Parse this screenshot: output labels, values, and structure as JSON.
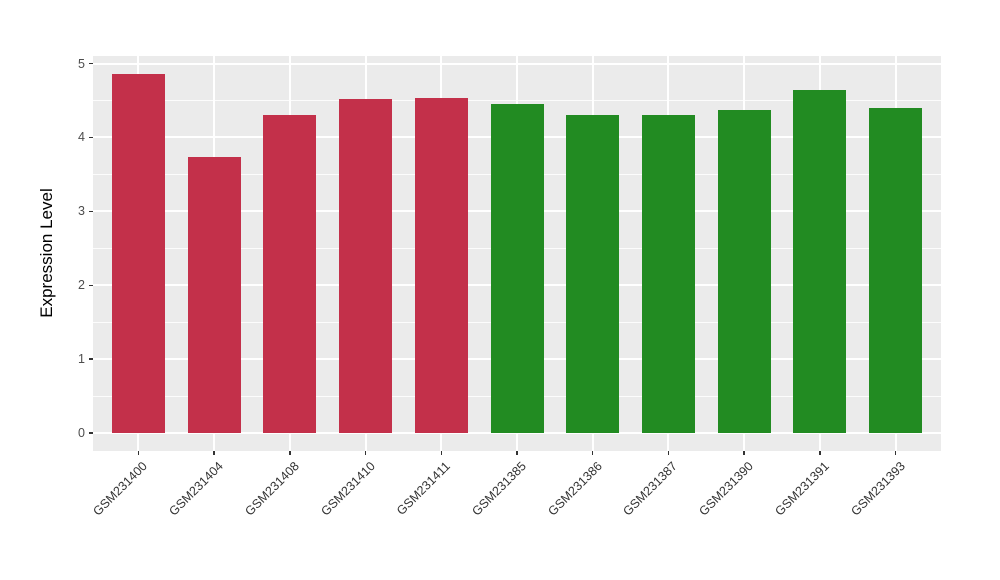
{
  "chart_data": {
    "type": "bar",
    "title": "",
    "xlabel": "",
    "ylabel": "Expression Level",
    "categories": [
      "GSM231400",
      "GSM231404",
      "GSM231408",
      "GSM231410",
      "GSM231411",
      "GSM231385",
      "GSM231386",
      "GSM231387",
      "GSM231390",
      "GSM231391",
      "GSM231393"
    ],
    "values": [
      4.86,
      3.73,
      4.31,
      4.52,
      4.54,
      4.46,
      4.3,
      4.3,
      4.37,
      4.64,
      4.4
    ],
    "bar_colors": [
      "#C3304A",
      "#C3304A",
      "#C3304A",
      "#C3304A",
      "#C3304A",
      "#228B22",
      "#228B22",
      "#228B22",
      "#228B22",
      "#228B22",
      "#228B22"
    ],
    "group_colors": {
      "red_group": "#C3304A",
      "green_group": "#228B22"
    },
    "ylim": [
      0,
      5
    ],
    "y_ticks": [
      0,
      1,
      2,
      3,
      4,
      5
    ],
    "y_minor_ticks": [
      0.5,
      1.5,
      2.5,
      3.5,
      4.5
    ],
    "grid": true,
    "legend": null,
    "style": {
      "panel_bg": "#EBEBEB",
      "grid_color": "#FFFFFF",
      "figure_bg": "#FFFFFF",
      "tick_label_color": "#4D4D4D",
      "axis_title_color": "#000000",
      "x_label_rotation_deg": 45
    }
  }
}
